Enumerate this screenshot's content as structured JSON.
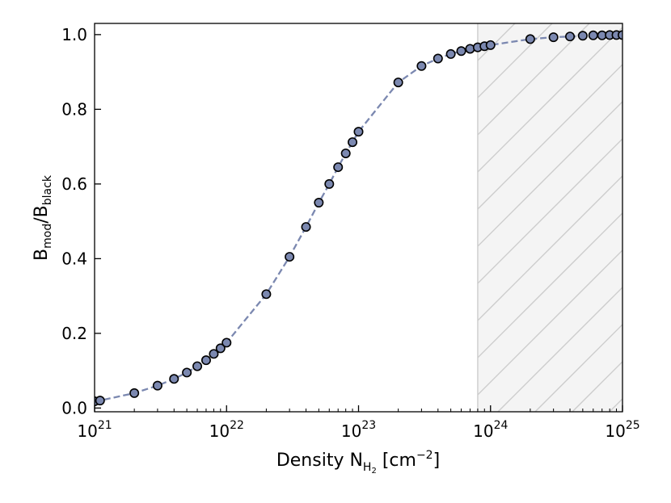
{
  "chart_data": {
    "type": "scatter",
    "xscale": "log",
    "xlim": [
      1e+21,
      1e+25
    ],
    "ylim": [
      -0.01,
      1.03
    ],
    "grid": false,
    "legend": "none",
    "xlabel": {
      "main": "Density N",
      "sub": "H",
      "sub2": "2",
      "unit_pre": " [cm",
      "unit_exp": "−2",
      "unit_post": "]"
    },
    "ylabel": {
      "num": "B",
      "num_sub": "mod",
      "sep": "/B",
      "den_sub": "black"
    },
    "x_ticks": [
      {
        "value": 1e+21,
        "base": "10",
        "exp": "21"
      },
      {
        "value": 1e+22,
        "base": "10",
        "exp": "22"
      },
      {
        "value": 1e+23,
        "base": "10",
        "exp": "23"
      },
      {
        "value": 1e+24,
        "base": "10",
        "exp": "24"
      },
      {
        "value": 1e+25,
        "base": "10",
        "exp": "25"
      }
    ],
    "y_ticks": [
      {
        "value": 0.0,
        "label": "0.0"
      },
      {
        "value": 0.2,
        "label": "0.2"
      },
      {
        "value": 0.4,
        "label": "0.4"
      },
      {
        "value": 0.6,
        "label": "0.6"
      },
      {
        "value": 0.8,
        "label": "0.8"
      },
      {
        "value": 1.0,
        "label": "1.0"
      }
    ],
    "shaded_region": {
      "x_start": 8e+23,
      "x_end": 1e+25,
      "pattern": "hatched",
      "fill": "#f4f4f4",
      "line": "#cccccc"
    },
    "series": [
      {
        "marker_color": "#7b88b0",
        "line_style": "dashed",
        "x": [
          1e+21,
          1.1e+21,
          2e+21,
          3e+21,
          4e+21,
          5e+21,
          6e+21,
          7e+21,
          8e+21,
          9e+21,
          1e+22,
          2e+22,
          3e+22,
          4e+22,
          5e+22,
          6e+22,
          7e+22,
          8e+22,
          9e+22,
          1e+23,
          2e+23,
          3e+23,
          4e+23,
          5e+23,
          6e+23,
          7e+23,
          8e+23,
          9e+23,
          1e+24,
          2e+24,
          3e+24,
          4e+24,
          5e+24,
          6e+24,
          7e+24,
          8e+24,
          9e+24,
          1e+25
        ],
        "y": [
          0.018,
          0.02,
          0.04,
          0.06,
          0.078,
          0.095,
          0.112,
          0.128,
          0.145,
          0.16,
          0.175,
          0.305,
          0.405,
          0.485,
          0.55,
          0.6,
          0.645,
          0.682,
          0.712,
          0.74,
          0.872,
          0.916,
          0.936,
          0.948,
          0.956,
          0.962,
          0.966,
          0.969,
          0.972,
          0.988,
          0.993,
          0.995,
          0.997,
          0.998,
          0.998,
          0.999,
          0.999,
          0.999
        ]
      }
    ]
  },
  "colors": {
    "marker": "#7b88b0",
    "line": "#7b88b0",
    "shade": "#f4f4f4",
    "hatch": "#cccccc"
  }
}
